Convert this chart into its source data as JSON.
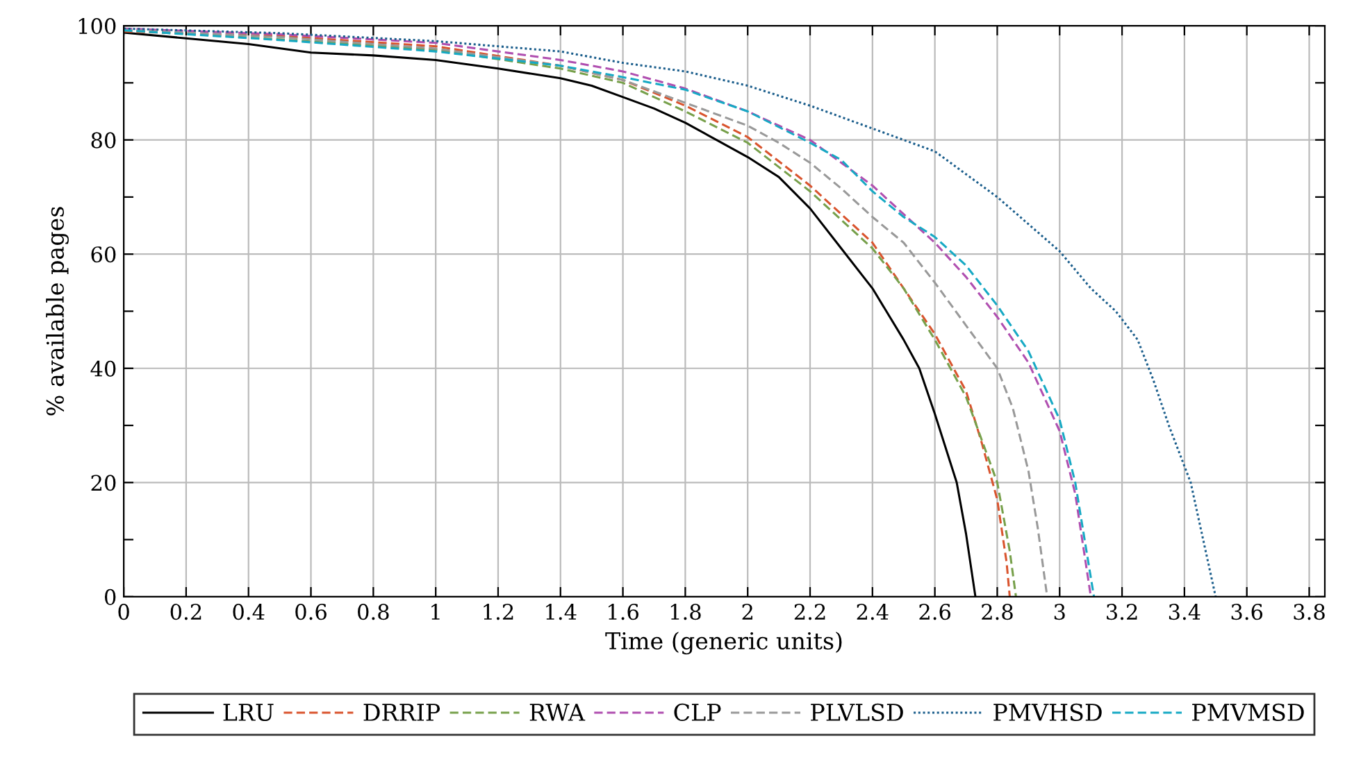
{
  "chart_data": {
    "type": "line",
    "xlabel": "Time (generic units)",
    "ylabel": "% available pages",
    "xlim": [
      0,
      3.85
    ],
    "ylim": [
      0,
      100
    ],
    "xticks": [
      0,
      0.2,
      0.4,
      0.6,
      0.8,
      1,
      1.2,
      1.4,
      1.6,
      1.8,
      2,
      2.2,
      2.4,
      2.6,
      2.8,
      3,
      3.2,
      3.4,
      3.6,
      3.8
    ],
    "yticks": [
      0,
      {
        "value": 10,
        "label": null
      },
      20,
      {
        "value": 30,
        "label": null
      },
      40,
      {
        "value": 50,
        "label": null
      },
      60,
      {
        "value": 70,
        "label": null
      },
      80,
      {
        "value": 90,
        "label": null
      },
      100
    ],
    "grid": true,
    "legend": "bottom",
    "marker": "none",
    "series": [
      {
        "name": "LRU",
        "color": "#000000",
        "line_style": "solid",
        "x": [
          0,
          0.2,
          0.4,
          0.6,
          0.8,
          1.0,
          1.2,
          1.4,
          1.5,
          1.6,
          1.7,
          1.8,
          1.9,
          2.0,
          2.1,
          2.2,
          2.3,
          2.4,
          2.5,
          2.55,
          2.6,
          2.67,
          2.7,
          2.73
        ],
        "values": [
          98.8,
          97.8,
          96.8,
          95.3,
          94.8,
          94,
          92.5,
          90.8,
          89.5,
          87.5,
          85.5,
          83,
          80,
          77,
          73.5,
          68,
          61,
          54,
          45,
          40,
          32,
          20,
          11,
          0
        ]
      },
      {
        "name": "DRRIP",
        "color": "#d9542e",
        "line_style": "dashed",
        "x": [
          0,
          0.5,
          1.0,
          1.4,
          1.6,
          1.8,
          2.0,
          2.2,
          2.3,
          2.4,
          2.5,
          2.6,
          2.7,
          2.75,
          2.8,
          2.83,
          2.84
        ],
        "values": [
          99.0,
          98.2,
          96.4,
          93,
          90.5,
          86,
          80.5,
          72,
          67,
          62,
          54,
          46,
          36,
          27,
          17,
          6,
          0
        ]
      },
      {
        "name": "RWA",
        "color": "#77a04b",
        "line_style": "dashed",
        "x": [
          0,
          0.5,
          1.0,
          1.4,
          1.6,
          1.8,
          2.0,
          2.2,
          2.4,
          2.5,
          2.6,
          2.7,
          2.8,
          2.84,
          2.86
        ],
        "values": [
          99.2,
          97.6,
          95.8,
          92.5,
          90,
          85,
          79.5,
          71,
          61,
          54,
          45,
          35,
          20,
          8,
          0
        ]
      },
      {
        "name": "CLP",
        "color": "#b04fb0",
        "line_style": "dashed",
        "x": [
          0,
          0.5,
          1.0,
          1.4,
          1.6,
          1.8,
          2.0,
          2.2,
          2.4,
          2.5,
          2.6,
          2.7,
          2.8,
          2.9,
          3.0,
          3.05,
          3.1
        ],
        "values": [
          99.5,
          98.5,
          97,
          94,
          92,
          89,
          85,
          80,
          72,
          67,
          62,
          56,
          49,
          41,
          29,
          18,
          0
        ]
      },
      {
        "name": "PLVLSD",
        "color": "#999999",
        "line_style": "dashed",
        "x": [
          0,
          0.5,
          1.0,
          1.4,
          1.6,
          1.8,
          2.0,
          2.1,
          2.2,
          2.3,
          2.4,
          2.5,
          2.6,
          2.7,
          2.8,
          2.85,
          2.9,
          2.93,
          2.96
        ],
        "values": [
          99.3,
          98,
          96,
          93,
          90.5,
          86.5,
          82.5,
          79.5,
          76,
          71.5,
          66.5,
          62,
          55,
          47.5,
          40,
          33,
          22,
          12,
          0
        ]
      },
      {
        "name": "PMVHSD",
        "color": "#1b5e8c",
        "line_style": "dotted",
        "x": [
          0,
          0.5,
          1.0,
          1.4,
          1.6,
          1.8,
          2.0,
          2.2,
          2.4,
          2.6,
          2.8,
          3.0,
          3.1,
          3.18,
          3.25,
          3.3,
          3.35,
          3.42,
          3.46,
          3.5
        ],
        "values": [
          99.5,
          98.7,
          97.3,
          95.5,
          93.5,
          92,
          89.5,
          86,
          82,
          78,
          70,
          60.5,
          54,
          50,
          45,
          38,
          30,
          20,
          10,
          0
        ]
      },
      {
        "name": "PMVMSD",
        "color": "#17a9c4",
        "line_style": "dashed",
        "x": [
          0,
          0.5,
          1.0,
          1.4,
          1.6,
          1.8,
          2.0,
          2.2,
          2.3,
          2.4,
          2.5,
          2.6,
          2.7,
          2.8,
          2.9,
          3.0,
          3.05,
          3.08,
          3.11
        ],
        "values": [
          99.2,
          97.5,
          95.5,
          93,
          91,
          88.8,
          85,
          79.5,
          76.5,
          71,
          66.5,
          63,
          58,
          51,
          43,
          31,
          20,
          10,
          0
        ]
      }
    ]
  }
}
